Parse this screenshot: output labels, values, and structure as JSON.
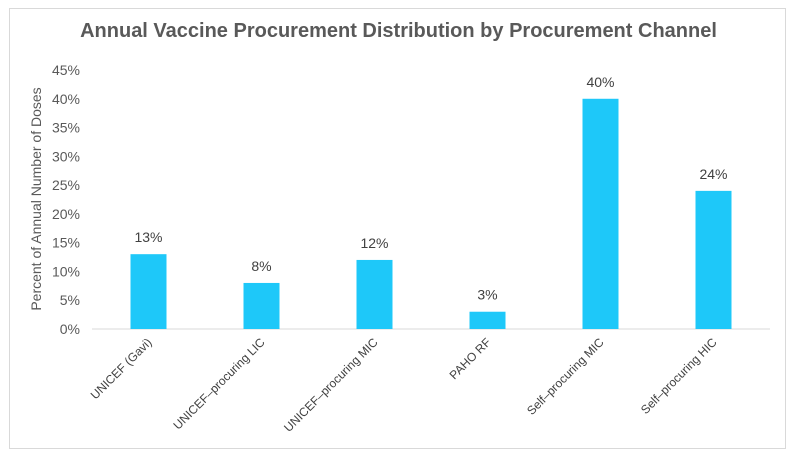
{
  "chart_data": {
    "type": "bar",
    "title": "Annual Vaccine Procurement Distribution by Procurement Channel",
    "xlabel": "",
    "ylabel": "Percent of Annual Number of Doses",
    "categories": [
      "UNICEF (Gavi)",
      "UNICEF–procuring LIC",
      "UNICEF–procuring MIC",
      "PAHO RF",
      "Self–procuring MIC",
      "Self–procuring HIC"
    ],
    "values": [
      13,
      8,
      12,
      3,
      40,
      24
    ],
    "data_labels": [
      "13%",
      "8%",
      "12%",
      "3%",
      "40%",
      "24%"
    ],
    "ylim": [
      0,
      45
    ],
    "yticks": [
      "0%",
      "5%",
      "10%",
      "15%",
      "20%",
      "25%",
      "30%",
      "35%",
      "40%",
      "45%"
    ],
    "ytick_values": [
      0,
      5,
      10,
      15,
      20,
      25,
      30,
      35,
      40,
      45
    ],
    "grid": false,
    "legend": "none",
    "bar_color": "#1ec8f9",
    "axis_color": "#d9d9d9"
  }
}
